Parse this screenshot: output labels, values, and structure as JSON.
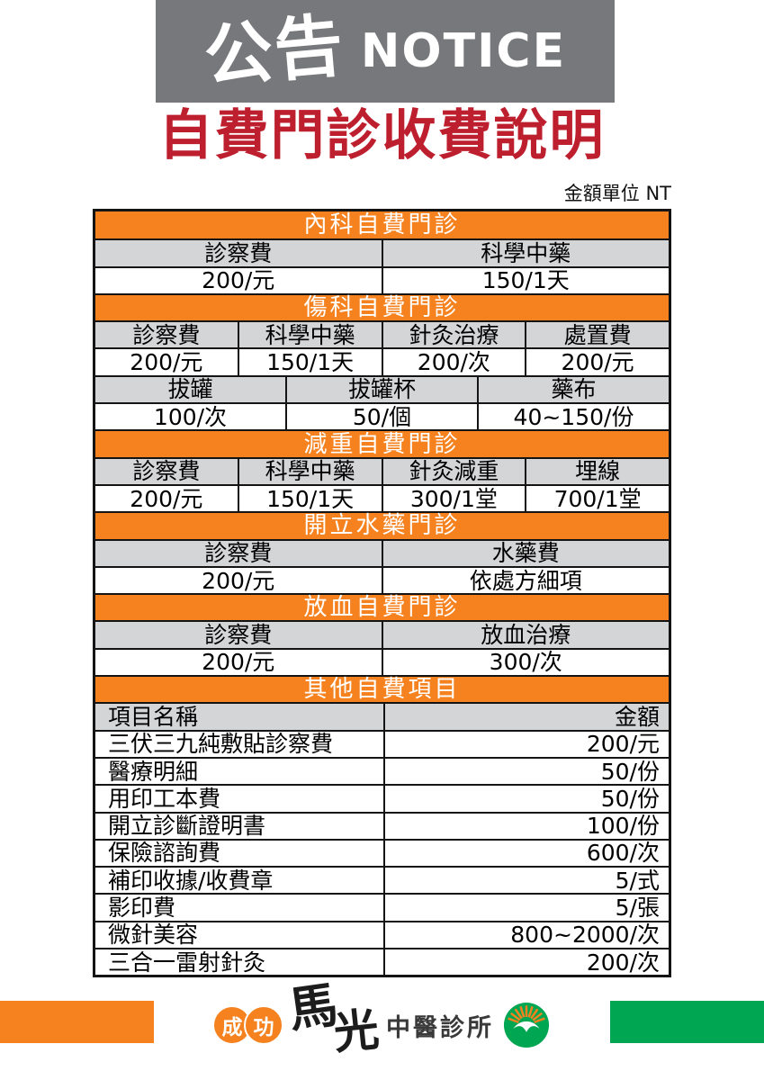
{
  "banner": {
    "zh": "公告",
    "en": "NOTICE"
  },
  "title": "自費門診收費說明",
  "unit_note": "金額單位 NT",
  "colors": {
    "banner_gray": "#77787B",
    "title_red": "#BE1F2E",
    "section_orange": "#F5821F",
    "row_gray": "#D4D5D7",
    "footer_green": "#00A651"
  },
  "fee_table": {
    "sections": [
      {
        "title": "內科自費門診",
        "rows": [
          {
            "type": "gray",
            "cells": [
              "診察費",
              "科學中藥"
            ]
          },
          {
            "type": "white",
            "cells": [
              "200/元",
              "150/1天"
            ]
          }
        ]
      },
      {
        "title": "傷科自費門診",
        "rows": [
          {
            "type": "gray",
            "cells": [
              "診察費",
              "科學中藥",
              "針灸治療",
              "處置費"
            ]
          },
          {
            "type": "white",
            "cells": [
              "200/元",
              "150/1天",
              "200/次",
              "200/元"
            ]
          },
          {
            "type": "gray",
            "cells": [
              "拔罐",
              "拔罐杯",
              "藥布"
            ]
          },
          {
            "type": "white",
            "cells": [
              "100/次",
              "50/個",
              "40~150/份"
            ]
          }
        ]
      },
      {
        "title": "減重自費門診",
        "rows": [
          {
            "type": "gray",
            "cells": [
              "診察費",
              "科學中藥",
              "針灸減重",
              "埋線"
            ]
          },
          {
            "type": "white",
            "cells": [
              "200/元",
              "150/1天",
              "300/1堂",
              "700/1堂"
            ]
          }
        ]
      },
      {
        "title": "開立水藥門診",
        "rows": [
          {
            "type": "gray",
            "cells": [
              "診察費",
              "水藥費"
            ]
          },
          {
            "type": "white",
            "cells": [
              "200/元",
              "依處方細項"
            ]
          }
        ]
      },
      {
        "title": "放血自費門診",
        "rows": [
          {
            "type": "gray",
            "cells": [
              "診察費",
              "放血治療"
            ]
          },
          {
            "type": "white",
            "cells": [
              "200/元",
              "300/次"
            ]
          }
        ]
      },
      {
        "title": "其他自費項目",
        "columns": [
          "項目名稱",
          "金額"
        ],
        "items": [
          {
            "name": "三伏三九純敷貼診察費",
            "price": "200/元"
          },
          {
            "name": "醫療明細",
            "price": "50/份"
          },
          {
            "name": "用印工本費",
            "price": "50/份"
          },
          {
            "name": "開立診斷證明書",
            "price": "100/份"
          },
          {
            "name": "保險諮詢費",
            "price": "600/次"
          },
          {
            "name": "補印收據/收費章",
            "price": "5/式"
          },
          {
            "name": "影印費",
            "price": "5/張"
          },
          {
            "name": "微針美容",
            "price": "800~2000/次"
          },
          {
            "name": "三合一雷射針灸",
            "price": "200/次"
          }
        ]
      }
    ]
  },
  "footer": {
    "logo": {
      "circle1": "成",
      "circle2": "功",
      "brand1": "馬",
      "brand2": "光",
      "suffix": "中醫診所"
    }
  }
}
